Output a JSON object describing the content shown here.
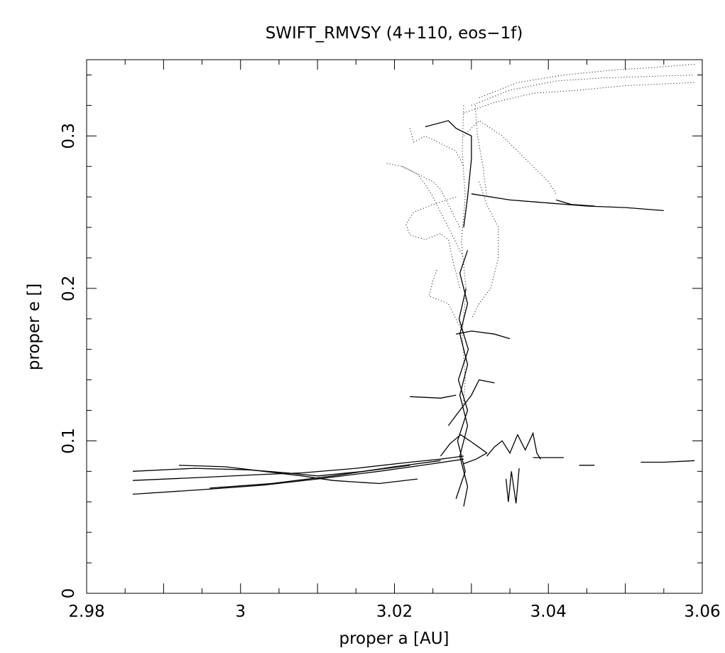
{
  "chart_data": {
    "type": "line",
    "title": "SWIFT_RMVSY (4+110, eos−1f)",
    "xlabel": "proper a [AU]",
    "ylabel": "proper e []",
    "xlim": [
      2.98,
      3.06
    ],
    "ylim": [
      0,
      0.35
    ],
    "x_ticks": [
      {
        "value": 2.98,
        "label": "2.98"
      },
      {
        "value": 3.0,
        "label": "3"
      },
      {
        "value": 3.02,
        "label": "3.02"
      },
      {
        "value": 3.04,
        "label": "3.04"
      },
      {
        "value": 3.06,
        "label": "3.06"
      }
    ],
    "y_ticks": [
      {
        "value": 0,
        "label": "0"
      },
      {
        "value": 0.1,
        "label": "0.1"
      },
      {
        "value": 0.2,
        "label": "0.2"
      },
      {
        "value": 0.3,
        "label": "0.3"
      }
    ],
    "grid": false,
    "color": "#000000",
    "tracks": [
      {
        "style": "solid",
        "points": [
          [
            2.986,
            0.074
          ],
          [
            2.995,
            0.076
          ],
          [
            3.003,
            0.078
          ],
          [
            3.008,
            0.079
          ],
          [
            3.015,
            0.082
          ],
          [
            3.022,
            0.086
          ],
          [
            3.026,
            0.088
          ],
          [
            3.029,
            0.09
          ]
        ]
      },
      {
        "style": "solid",
        "points": [
          [
            2.986,
            0.065
          ],
          [
            2.995,
            0.068
          ],
          [
            3.003,
            0.071
          ],
          [
            3.01,
            0.075
          ],
          [
            3.018,
            0.08
          ],
          [
            3.025,
            0.085
          ],
          [
            3.029,
            0.088
          ]
        ]
      },
      {
        "style": "solid",
        "points": [
          [
            2.986,
            0.08
          ],
          [
            2.994,
            0.082
          ],
          [
            3.001,
            0.081
          ],
          [
            3.006,
            0.079
          ],
          [
            3.01,
            0.077
          ],
          [
            3.016,
            0.08
          ],
          [
            3.022,
            0.084
          ]
        ]
      },
      {
        "style": "solid",
        "points": [
          [
            2.992,
            0.084
          ],
          [
            2.998,
            0.083
          ],
          [
            3.003,
            0.08
          ],
          [
            3.008,
            0.077
          ],
          [
            3.012,
            0.074
          ],
          [
            3.018,
            0.072
          ],
          [
            3.023,
            0.075
          ]
        ]
      },
      {
        "style": "solid",
        "points": [
          [
            2.996,
            0.069
          ],
          [
            3.004,
            0.072
          ],
          [
            3.012,
            0.077
          ],
          [
            3.02,
            0.083
          ],
          [
            3.026,
            0.087
          ]
        ]
      },
      {
        "style": "solid",
        "points": [
          [
            3.029,
            0.057
          ],
          [
            3.0295,
            0.07
          ],
          [
            3.0285,
            0.09
          ],
          [
            3.0295,
            0.11
          ],
          [
            3.0285,
            0.13
          ],
          [
            3.0295,
            0.15
          ],
          [
            3.0285,
            0.17
          ],
          [
            3.0295,
            0.19
          ],
          [
            3.0285,
            0.21
          ],
          [
            3.0295,
            0.225
          ]
        ]
      },
      {
        "style": "solid",
        "points": [
          [
            3.028,
            0.062
          ],
          [
            3.0292,
            0.08
          ],
          [
            3.0282,
            0.1
          ],
          [
            3.0295,
            0.12
          ],
          [
            3.0283,
            0.14
          ],
          [
            3.0296,
            0.16
          ],
          [
            3.0284,
            0.18
          ],
          [
            3.0293,
            0.2
          ]
        ]
      },
      {
        "style": "solid",
        "points": [
          [
            3.026,
            0.09
          ],
          [
            3.0272,
            0.098
          ],
          [
            3.0286,
            0.104
          ],
          [
            3.0298,
            0.1
          ],
          [
            3.0312,
            0.095
          ],
          [
            3.032,
            0.092
          ],
          [
            3.0306,
            0.088
          ],
          [
            3.029,
            0.085
          ]
        ]
      },
      {
        "style": "solid",
        "points": [
          [
            3.027,
            0.11
          ],
          [
            3.0285,
            0.12
          ],
          [
            3.03,
            0.13
          ],
          [
            3.031,
            0.14
          ],
          [
            3.033,
            0.138
          ]
        ]
      },
      {
        "style": "solid",
        "points": [
          [
            3.022,
            0.129
          ],
          [
            3.026,
            0.128
          ],
          [
            3.028,
            0.13
          ]
        ]
      },
      {
        "style": "solid",
        "points": [
          [
            3.028,
            0.17
          ],
          [
            3.03,
            0.172
          ],
          [
            3.033,
            0.17
          ],
          [
            3.035,
            0.167
          ]
        ]
      },
      {
        "style": "solid",
        "points": [
          [
            3.032,
            0.09
          ],
          [
            3.033,
            0.096
          ],
          [
            3.034,
            0.1
          ],
          [
            3.035,
            0.092
          ],
          [
            3.036,
            0.104
          ],
          [
            3.037,
            0.094
          ],
          [
            3.038,
            0.105
          ],
          [
            3.0385,
            0.092
          ],
          [
            3.039,
            0.088
          ]
        ]
      },
      {
        "style": "solid",
        "points": [
          [
            3.0345,
            0.075
          ],
          [
            3.0348,
            0.06
          ],
          [
            3.0352,
            0.08
          ],
          [
            3.0358,
            0.059
          ],
          [
            3.0362,
            0.082
          ]
        ]
      },
      {
        "style": "solid",
        "points": [
          [
            3.038,
            0.089
          ],
          [
            3.042,
            0.089
          ]
        ]
      },
      {
        "style": "solid",
        "points": [
          [
            3.044,
            0.084
          ],
          [
            3.046,
            0.084
          ]
        ]
      },
      {
        "style": "solid",
        "points": [
          [
            3.052,
            0.086
          ],
          [
            3.055,
            0.086
          ],
          [
            3.059,
            0.087
          ]
        ]
      },
      {
        "style": "solid",
        "points": [
          [
            3.03,
            0.262
          ],
          [
            3.035,
            0.258
          ],
          [
            3.04,
            0.256
          ],
          [
            3.045,
            0.254
          ],
          [
            3.05,
            0.253
          ],
          [
            3.055,
            0.251
          ]
        ]
      },
      {
        "style": "solid",
        "points": [
          [
            3.041,
            0.258
          ],
          [
            3.043,
            0.255
          ],
          [
            3.046,
            0.254
          ]
        ]
      },
      {
        "style": "solid",
        "points": [
          [
            3.024,
            0.306
          ],
          [
            3.027,
            0.31
          ],
          [
            3.028,
            0.305
          ],
          [
            3.03,
            0.3
          ],
          [
            3.03,
            0.285
          ],
          [
            3.0295,
            0.26
          ],
          [
            3.029,
            0.24
          ]
        ]
      },
      {
        "style": "dotted",
        "points": [
          [
            3.031,
            0.325
          ],
          [
            3.036,
            0.335
          ],
          [
            3.042,
            0.34
          ],
          [
            3.048,
            0.343
          ],
          [
            3.054,
            0.345
          ],
          [
            3.059,
            0.347
          ]
        ]
      },
      {
        "style": "dotted",
        "points": [
          [
            3.03,
            0.32
          ],
          [
            3.035,
            0.33
          ],
          [
            3.041,
            0.336
          ],
          [
            3.047,
            0.338
          ],
          [
            3.053,
            0.339
          ],
          [
            3.059,
            0.34
          ]
        ]
      },
      {
        "style": "dotted",
        "points": [
          [
            3.029,
            0.315
          ],
          [
            3.033,
            0.322
          ],
          [
            3.038,
            0.328
          ],
          [
            3.044,
            0.33
          ],
          [
            3.05,
            0.333
          ],
          [
            3.059,
            0.335
          ]
        ]
      },
      {
        "style": "dotted",
        "points": [
          [
            3.029,
            0.3
          ],
          [
            3.031,
            0.31
          ],
          [
            3.034,
            0.3
          ],
          [
            3.036,
            0.29
          ],
          [
            3.038,
            0.28
          ],
          [
            3.04,
            0.27
          ],
          [
            3.041,
            0.262
          ]
        ]
      },
      {
        "style": "dotted",
        "points": [
          [
            3.019,
            0.282
          ],
          [
            3.021,
            0.28
          ],
          [
            3.023,
            0.275
          ],
          [
            3.025,
            0.27
          ],
          [
            3.026,
            0.265
          ],
          [
            3.027,
            0.255
          ],
          [
            3.0285,
            0.24
          ]
        ]
      },
      {
        "style": "dotted",
        "points": [
          [
            3.022,
            0.305
          ],
          [
            3.0225,
            0.296
          ],
          [
            3.024,
            0.3
          ],
          [
            3.026,
            0.295
          ],
          [
            3.028,
            0.29
          ],
          [
            3.029,
            0.28
          ]
        ]
      },
      {
        "style": "dotted",
        "points": [
          [
            3.021,
            0.28
          ],
          [
            3.023,
            0.275
          ],
          [
            3.024,
            0.268
          ],
          [
            3.025,
            0.26
          ],
          [
            3.026,
            0.25
          ],
          [
            3.027,
            0.24
          ],
          [
            3.028,
            0.23
          ],
          [
            3.029,
            0.22
          ]
        ]
      },
      {
        "style": "dotted",
        "points": [
          [
            3.028,
            0.26
          ],
          [
            3.025,
            0.255
          ],
          [
            3.0225,
            0.25
          ],
          [
            3.0215,
            0.242
          ],
          [
            3.022,
            0.235
          ],
          [
            3.024,
            0.232
          ],
          [
            3.026,
            0.236
          ],
          [
            3.027,
            0.232
          ],
          [
            3.0275,
            0.22
          ],
          [
            3.0285,
            0.2
          ]
        ]
      },
      {
        "style": "dotted",
        "points": [
          [
            3.0255,
            0.212
          ],
          [
            3.025,
            0.205
          ],
          [
            3.0245,
            0.195
          ],
          [
            3.027,
            0.19
          ],
          [
            3.028,
            0.18
          ],
          [
            3.029,
            0.17
          ]
        ]
      },
      {
        "style": "dotted",
        "points": [
          [
            3.031,
            0.27
          ],
          [
            3.032,
            0.255
          ],
          [
            3.0335,
            0.24
          ],
          [
            3.0335,
            0.22
          ],
          [
            3.0325,
            0.2
          ],
          [
            3.031,
            0.19
          ],
          [
            3.03,
            0.18
          ]
        ]
      },
      {
        "style": "dotted",
        "points": [
          [
            3.029,
            0.32
          ],
          [
            3.0288,
            0.29
          ],
          [
            3.0292,
            0.26
          ],
          [
            3.0287,
            0.23
          ],
          [
            3.0293,
            0.2
          ],
          [
            3.0288,
            0.17
          ],
          [
            3.0292,
            0.14
          ],
          [
            3.0289,
            0.12
          ]
        ]
      },
      {
        "style": "dotted",
        "points": [
          [
            3.0305,
            0.32
          ],
          [
            3.0308,
            0.3
          ],
          [
            3.0315,
            0.28
          ],
          [
            3.032,
            0.26
          ]
        ]
      }
    ]
  }
}
